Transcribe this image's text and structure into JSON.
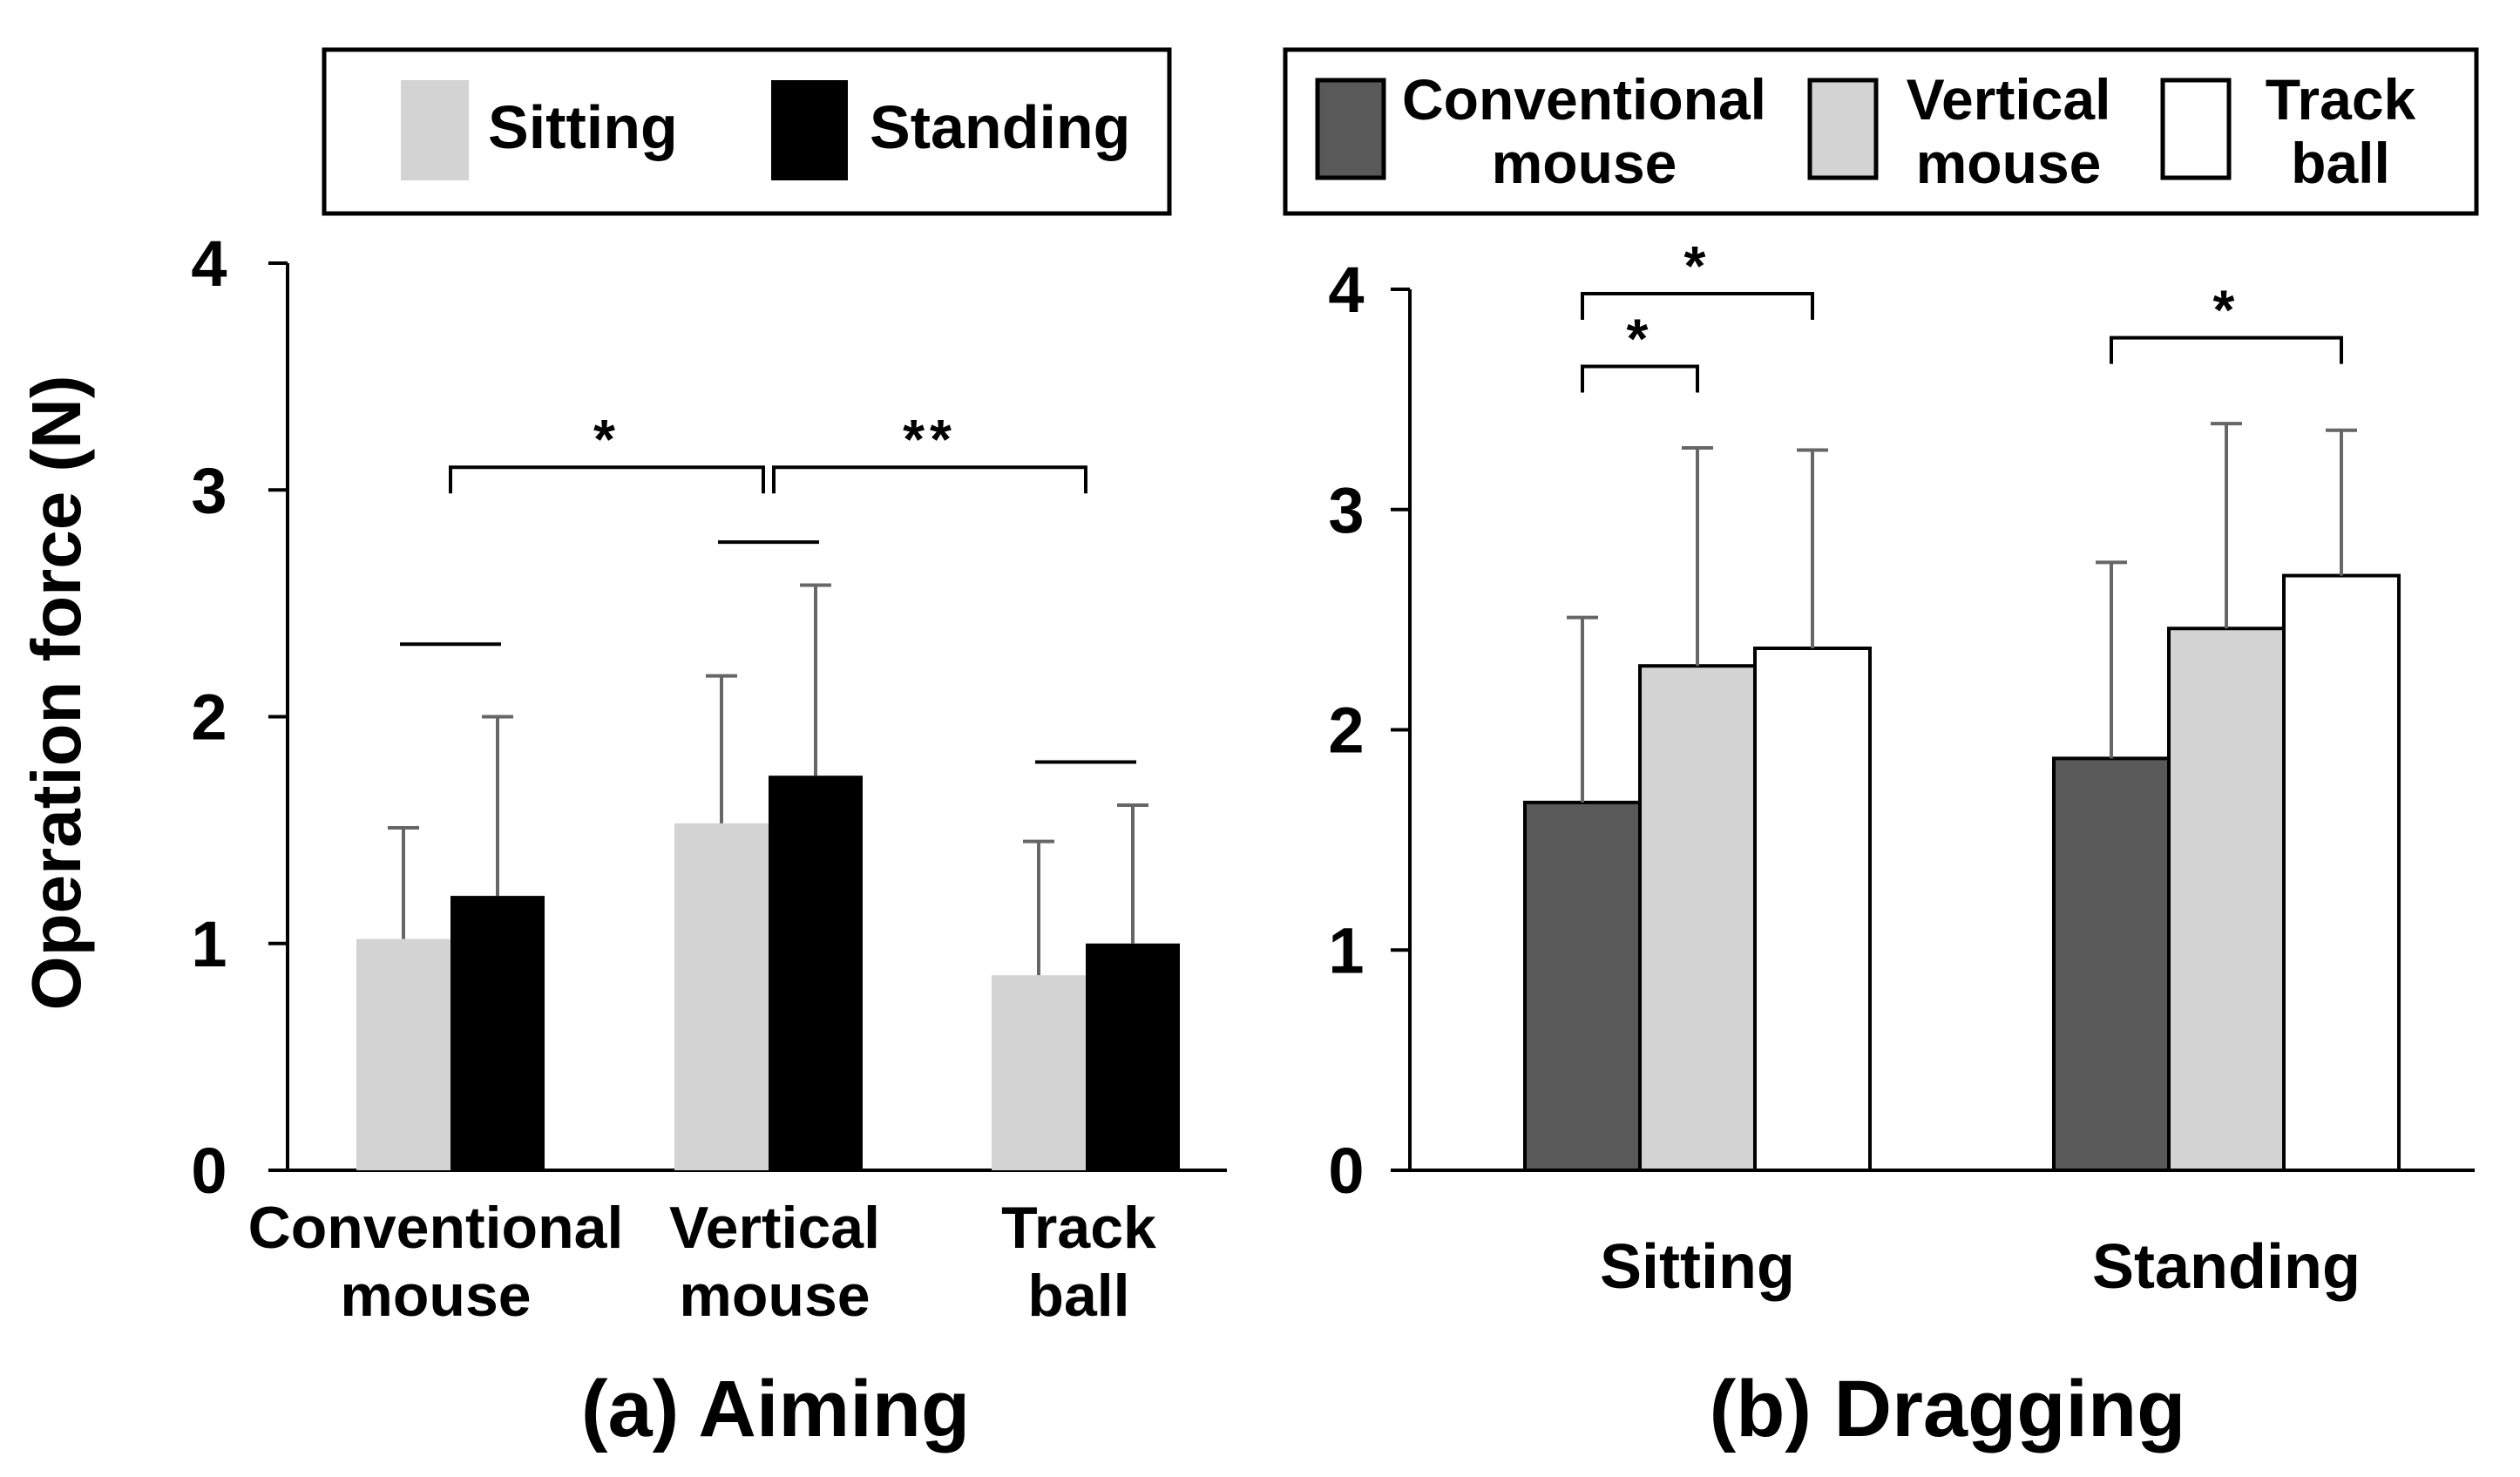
{
  "colors": {
    "sitting": "#d3d3d3",
    "standing": "#000000",
    "conventional": "#595959",
    "vertical": "#d3d3d3",
    "trackball": "#ffffff",
    "error_bar": "#666666",
    "axis": "#000000",
    "bar_outline": "#000000"
  },
  "y_axis_label": "Operation force (N)",
  "chart_data": [
    {
      "type": "bar",
      "title": "(a) Aiming",
      "xlabel": "",
      "ylabel": "Operation force (N)",
      "ylim": [
        0,
        4
      ],
      "yticks": [
        "0",
        "1",
        "2",
        "3",
        "4"
      ],
      "categories": [
        [
          "Conventional",
          "mouse"
        ],
        [
          "Vertical",
          "mouse"
        ],
        [
          "Track",
          "ball"
        ]
      ],
      "legend": {
        "placement": "top",
        "entries": [
          "Sitting",
          "Standing"
        ]
      },
      "series": [
        {
          "name": "Sitting",
          "values": [
            1.02,
            1.53,
            0.86
          ],
          "errors": [
            0.49,
            0.65,
            0.59
          ]
        },
        {
          "name": "Standing",
          "values": [
            1.21,
            1.74,
            1.0
          ],
          "errors": [
            0.79,
            0.84,
            0.61
          ]
        }
      ],
      "significance": [
        {
          "from": 0,
          "to": 1,
          "label": "*",
          "level": 3.1
        },
        {
          "from": 1,
          "to": 2,
          "label": "**",
          "level": 3.1
        }
      ],
      "pair_lines": [
        {
          "category": 0,
          "level": 2.32
        },
        {
          "category": 1,
          "level": 2.77
        },
        {
          "category": 2,
          "level": 1.8
        }
      ]
    },
    {
      "type": "bar",
      "title": "(b) Dragging",
      "xlabel": "",
      "ylabel": "",
      "ylim": [
        0,
        4
      ],
      "yticks": [
        "0",
        "1",
        "2",
        "3",
        "4"
      ],
      "categories": [
        [
          "Sitting"
        ],
        [
          "Standing"
        ]
      ],
      "legend": {
        "placement": "top",
        "entries": [
          [
            "Conventional",
            "mouse"
          ],
          [
            "Vertical",
            "mouse"
          ],
          [
            "Track",
            "ball"
          ]
        ]
      },
      "series": [
        {
          "name": "Conventional mouse",
          "values": [
            1.67,
            1.87
          ],
          "errors": [
            0.84,
            0.89
          ]
        },
        {
          "name": "Vertical mouse",
          "values": [
            2.29,
            2.46
          ],
          "errors": [
            0.99,
            0.93
          ]
        },
        {
          "name": "Track ball",
          "values": [
            2.37,
            2.7
          ],
          "errors": [
            0.9,
            0.66
          ]
        }
      ],
      "significance": [
        {
          "group": 0,
          "from": 0,
          "to": 1,
          "label": "*",
          "level": 3.65
        },
        {
          "group": 0,
          "from": 0,
          "to": 2,
          "label": "*",
          "level": 3.98
        },
        {
          "group": 1,
          "from": 0,
          "to": 2,
          "label": "*",
          "level": 3.78
        }
      ]
    }
  ]
}
